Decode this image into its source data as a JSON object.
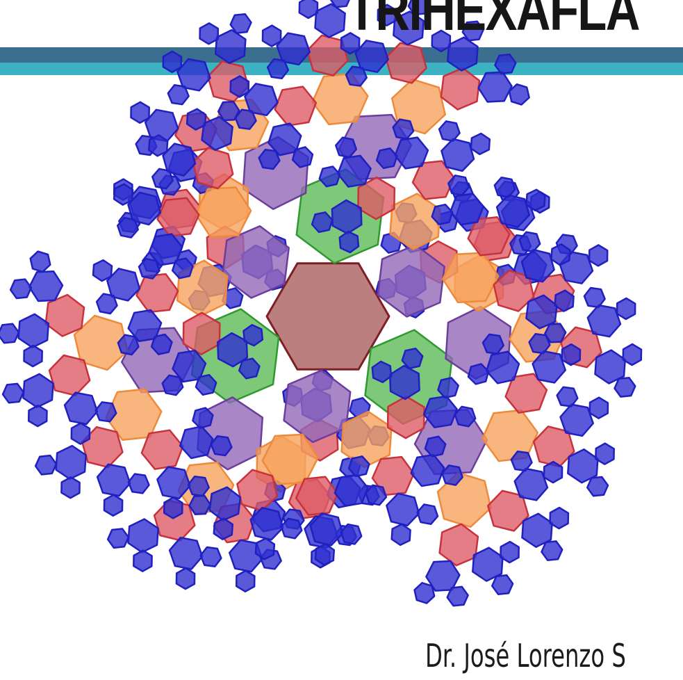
{
  "slide": {
    "title": "TRIHEXAFLA",
    "author": "Dr. José Lorenzo S"
  },
  "colors": {
    "band_dark": "#3a6f8f",
    "band_light": "#3bb3c3",
    "hexagon_center": "#b06868",
    "hexagon_green": "#5dbb58",
    "hexagon_purple": "#9369b8",
    "hexagon_orange": "#f6a25d",
    "hexagon_red": "#dd5d66",
    "hexagon_blue": "#2f2fd0"
  },
  "graphic": {
    "name": "hexagon fractal",
    "levels": [
      "center",
      "green",
      "purple",
      "orange",
      "red",
      "blue"
    ]
  }
}
